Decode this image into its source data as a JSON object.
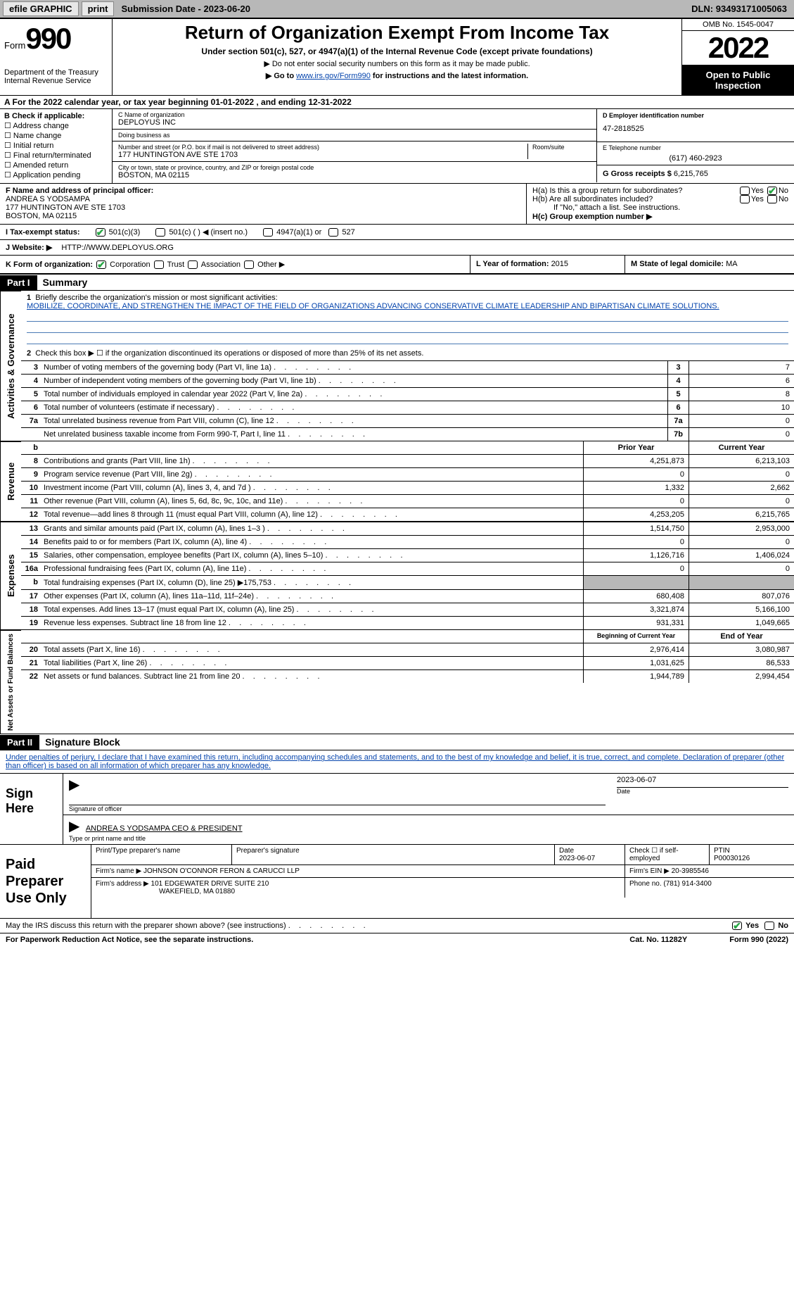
{
  "topbar": {
    "efile": "efile GRAPHIC",
    "print": "print",
    "submission_label": "Submission Date - ",
    "submission_date": "2023-06-20",
    "dln_label": "DLN: ",
    "dln": "93493171005063"
  },
  "header": {
    "form_label": "Form",
    "form_number": "990",
    "dept": "Department of the Treasury",
    "irs": "Internal Revenue Service",
    "title": "Return of Organization Exempt From Income Tax",
    "subtitle": "Under section 501(c), 527, or 4947(a)(1) of the Internal Revenue Code (except private foundations)",
    "note1": "▶ Do not enter social security numbers on this form as it may be made public.",
    "note2a": "▶ Go to ",
    "note2link": "www.irs.gov/Form990",
    "note2b": " for instructions and the latest information.",
    "omb": "OMB No. 1545-0047",
    "year": "2022",
    "inspection": "Open to Public Inspection"
  },
  "row_a": "A For the 2022 calendar year, or tax year beginning 01-01-2022    , and ending 12-31-2022",
  "col_b": {
    "label": "B Check if applicable:",
    "opts": [
      "Address change",
      "Name change",
      "Initial return",
      "Final return/terminated",
      "Amended return",
      "Application pending"
    ]
  },
  "c": {
    "name_label": "C Name of organization",
    "name": "DEPLOYUS INC",
    "dba_label": "Doing business as",
    "dba": "",
    "street_label": "Number and street (or P.O. box if mail is not delivered to street address)",
    "room_label": "Room/suite",
    "street": "177 HUNTINGTON AVE STE 1703",
    "city_label": "City or town, state or province, country, and ZIP or foreign postal code",
    "city": "BOSTON, MA  02115"
  },
  "d": {
    "label": "D Employer identification number",
    "value": "47-2818525"
  },
  "e": {
    "label": "E Telephone number",
    "value": "(617) 460-2923"
  },
  "g": {
    "label": "G Gross receipts $ ",
    "value": "6,215,765"
  },
  "f": {
    "label": "F  Name and address of principal officer:",
    "name": "ANDREA S YODSAMPA",
    "addr1": "177 HUNTINGTON AVE STE 1703",
    "addr2": "BOSTON, MA   02115"
  },
  "h": {
    "a": "H(a)  Is this a group return for subordinates?",
    "b": "H(b)  Are all subordinates included?",
    "b_note": "If \"No,\" attach a list. See instructions.",
    "c": "H(c)  Group exemption number ▶",
    "yes": "Yes",
    "no": "No"
  },
  "i": {
    "label": "I    Tax-exempt status:",
    "o1": "501(c)(3)",
    "o2": "501(c) (  ) ◀ (insert no.)",
    "o3": "4947(a)(1) or",
    "o4": "527"
  },
  "j": {
    "label": "J    Website: ▶",
    "value": "HTTP://WWW.DEPLOYUS.ORG"
  },
  "k": {
    "label": "K Form of organization:",
    "o1": "Corporation",
    "o2": "Trust",
    "o3": "Association",
    "o4": "Other ▶"
  },
  "l": {
    "label": "L Year of formation: ",
    "value": "2015"
  },
  "m": {
    "label": "M State of legal domicile: ",
    "value": "MA"
  },
  "part1": {
    "hdr": "Part I",
    "title": "Summary"
  },
  "summary": {
    "s1_label": "Briefly describe the organization's mission or most significant activities:",
    "s1_text": "MOBILIZE, COORDINATE, AND STRENGTHEN THE IMPACT OF THE FIELD OF ORGANIZATIONS ADVANCING CONSERVATIVE CLIMATE LEADERSHIP AND BIPARTISAN CLIMATE SOLUTIONS.",
    "s2": "Check this box ▶ ☐ if the organization discontinued its operations or disposed of more than 25% of its net assets.",
    "rows_ag": [
      {
        "n": "3",
        "d": "Number of voting members of the governing body (Part VI, line 1a)",
        "box": "3",
        "v": "7"
      },
      {
        "n": "4",
        "d": "Number of independent voting members of the governing body (Part VI, line 1b)",
        "box": "4",
        "v": "6"
      },
      {
        "n": "5",
        "d": "Total number of individuals employed in calendar year 2022 (Part V, line 2a)",
        "box": "5",
        "v": "8"
      },
      {
        "n": "6",
        "d": "Total number of volunteers (estimate if necessary)",
        "box": "6",
        "v": "10"
      },
      {
        "n": "7a",
        "d": "Total unrelated business revenue from Part VIII, column (C), line 12",
        "box": "7a",
        "v": "0"
      },
      {
        "n": "",
        "d": "Net unrelated business taxable income from Form 990-T, Part I, line 11",
        "box": "7b",
        "v": "0"
      }
    ],
    "py_hdr": "Prior Year",
    "cy_hdr": "Current Year",
    "rows_rev": [
      {
        "n": "8",
        "d": "Contributions and grants (Part VIII, line 1h)",
        "py": "4,251,873",
        "cy": "6,213,103"
      },
      {
        "n": "9",
        "d": "Program service revenue (Part VIII, line 2g)",
        "py": "0",
        "cy": "0"
      },
      {
        "n": "10",
        "d": "Investment income (Part VIII, column (A), lines 3, 4, and 7d )",
        "py": "1,332",
        "cy": "2,662"
      },
      {
        "n": "11",
        "d": "Other revenue (Part VIII, column (A), lines 5, 6d, 8c, 9c, 10c, and 11e)",
        "py": "0",
        "cy": "0"
      },
      {
        "n": "12",
        "d": "Total revenue—add lines 8 through 11 (must equal Part VIII, column (A), line 12)",
        "py": "4,253,205",
        "cy": "6,215,765"
      }
    ],
    "rows_exp": [
      {
        "n": "13",
        "d": "Grants and similar amounts paid (Part IX, column (A), lines 1–3 )",
        "py": "1,514,750",
        "cy": "2,953,000"
      },
      {
        "n": "14",
        "d": "Benefits paid to or for members (Part IX, column (A), line 4)",
        "py": "0",
        "cy": "0"
      },
      {
        "n": "15",
        "d": "Salaries, other compensation, employee benefits (Part IX, column (A), lines 5–10)",
        "py": "1,126,716",
        "cy": "1,406,024"
      },
      {
        "n": "16a",
        "d": "Professional fundraising fees (Part IX, column (A), line 11e)",
        "py": "0",
        "cy": "0"
      },
      {
        "n": "b",
        "d": "Total fundraising expenses (Part IX, column (D), line 25) ▶175,753",
        "py": "",
        "cy": "",
        "shaded": true
      },
      {
        "n": "17",
        "d": "Other expenses (Part IX, column (A), lines 11a–11d, 11f–24e)",
        "py": "680,408",
        "cy": "807,076"
      },
      {
        "n": "18",
        "d": "Total expenses. Add lines 13–17 (must equal Part IX, column (A), line 25)",
        "py": "3,321,874",
        "cy": "5,166,100"
      },
      {
        "n": "19",
        "d": "Revenue less expenses. Subtract line 18 from line 12",
        "py": "931,331",
        "cy": "1,049,665"
      }
    ],
    "bcy_hdr": "Beginning of Current Year",
    "eoy_hdr": "End of Year",
    "rows_net": [
      {
        "n": "20",
        "d": "Total assets (Part X, line 16)",
        "py": "2,976,414",
        "cy": "3,080,987"
      },
      {
        "n": "21",
        "d": "Total liabilities (Part X, line 26)",
        "py": "1,031,625",
        "cy": "86,533"
      },
      {
        "n": "22",
        "d": "Net assets or fund balances. Subtract line 21 from line 20",
        "py": "1,944,789",
        "cy": "2,994,454"
      }
    ],
    "sidebars": [
      "Activities & Governance",
      "Revenue",
      "Expenses",
      "Net Assets or Fund Balances"
    ]
  },
  "part2": {
    "hdr": "Part II",
    "title": "Signature Block"
  },
  "sig": {
    "decl": "Under penalties of perjury, I declare that I have examined this return, including accompanying schedules and statements, and to the best of my knowledge and belief, it is true, correct, and complete. Declaration of preparer (other than officer) is based on all information of which preparer has any knowledge.",
    "sign_here": "Sign Here",
    "sig_officer": "Signature of officer",
    "date_lbl": "Date",
    "sig_date": "2023-06-07",
    "name_title": "ANDREA S YODSAMPA CEO & PRESIDENT",
    "type_name": "Type or print name and title"
  },
  "paid": {
    "label": "Paid Preparer Use Only",
    "print_name_lbl": "Print/Type preparer's name",
    "prep_sig_lbl": "Preparer's signature",
    "date_lbl": "Date",
    "date": "2023-06-07",
    "check_lbl": "Check ☐ if self-employed",
    "ptin_lbl": "PTIN",
    "ptin": "P00030126",
    "firm_name_lbl": "Firm's name      ▶",
    "firm_name": "JOHNSON O'CONNOR FERON & CARUCCI LLP",
    "firm_ein_lbl": "Firm's EIN ▶",
    "firm_ein": "20-3985546",
    "firm_addr_lbl": "Firm's address ▶",
    "firm_addr1": "101 EDGEWATER DRIVE SUITE 210",
    "firm_addr2": "WAKEFIELD, MA  01880",
    "phone_lbl": "Phone no. ",
    "phone": "(781) 914-3400"
  },
  "discuss": {
    "text": "May the IRS discuss this return with the preparer shown above? (see instructions)",
    "yes": "Yes",
    "no": "No"
  },
  "footer": {
    "pra": "For Paperwork Reduction Act Notice, see the separate instructions.",
    "cat": "Cat. No. 11282Y",
    "form": "Form 990 (2022)"
  }
}
